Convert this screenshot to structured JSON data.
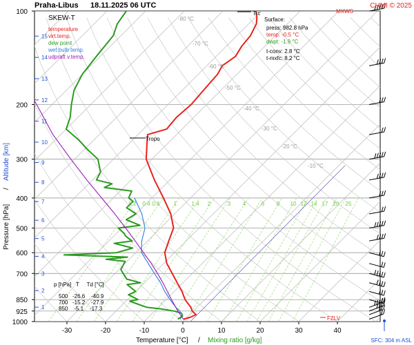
{
  "header": {
    "station": "Praha-Libus",
    "datetime": "18.11.2025 06 UTC",
    "credit": "CHMI © 2025",
    "mxws": "MXWS",
    "chart_name": "SKEW-T"
  },
  "legend": [
    {
      "label": "temperature",
      "color": "#e8201a"
    },
    {
      "label": "virt.temp.",
      "color": "#e8201a"
    },
    {
      "label": "dew point",
      "color": "#2a9a1e"
    },
    {
      "label": "wet bulb temp.",
      "color": "#2a7de1"
    },
    {
      "label": "udpraft v.temp.",
      "color": "#9a1ab8"
    }
  ],
  "surface_box": {
    "title": "Surface:",
    "press": "press: 982.8 hPa",
    "temp": "temp: -0.5 °C",
    "dwpt": "dwpt: -1.9 °C",
    "tconv": "t-conv: 2.8 °C",
    "tmxfc": "t-mxfc: 8.2 °C"
  },
  "levels_table": {
    "header": "p [hPa]   T     Td [°C]",
    "rows": [
      "500   -26.6    -40.9",
      "700   -15.2    -27.9",
      "850    -5.1    -17.3"
    ]
  },
  "labels": {
    "tropo": "Tropo",
    "trc": "Trc",
    "fzlv": "FZLV",
    "sfc": "SFC: 304 m ASL",
    "xlabel_temp": "Temperature [°C]",
    "xlabel_sep": "/",
    "xlabel_mix": "Mixing ratio [g/kg]",
    "ylabel_press": "Pressure [hPa]",
    "ylabel_sep": "/",
    "ylabel_alt": "Altitude [km]"
  },
  "chart_data": {
    "type": "line",
    "pressure_ticks": [
      100,
      200,
      300,
      400,
      500,
      600,
      700,
      850,
      925,
      1000
    ],
    "temperature_ticks": [
      -30,
      -20,
      -10,
      0,
      10,
      20,
      30,
      40
    ],
    "altitude_ticks": [
      1,
      2,
      3,
      4,
      5,
      6,
      7,
      8,
      9,
      10,
      11,
      12,
      13,
      14,
      15
    ],
    "isotherm_labels": [
      -80,
      -70,
      -60,
      -50,
      -40,
      -30,
      -20,
      -10
    ],
    "mixing_ratio_labels": [
      "0.2",
      "0.4",
      "0.6",
      "1",
      "1.4",
      "2",
      "3",
      "4",
      "6",
      "8",
      "10",
      "12",
      "14",
      "17",
      "20",
      "25"
    ],
    "series": [
      {
        "key": "temperature",
        "color": "#e8201a",
        "points": [
          [
            983,
            -0.5
          ],
          [
            970,
            0.8
          ],
          [
            950,
            1.6
          ],
          [
            925,
            -0.3
          ],
          [
            900,
            -1.6
          ],
          [
            850,
            -5.1
          ],
          [
            800,
            -8
          ],
          [
            750,
            -11.5
          ],
          [
            700,
            -15.2
          ],
          [
            650,
            -19.2
          ],
          [
            600,
            -22.5
          ],
          [
            550,
            -24.5
          ],
          [
            500,
            -26.6
          ],
          [
            450,
            -31
          ],
          [
            400,
            -37
          ],
          [
            350,
            -44
          ],
          [
            300,
            -51.5
          ],
          [
            270,
            -55
          ],
          [
            250,
            -57.5
          ],
          [
            240,
            -54
          ],
          [
            220,
            -54.5
          ],
          [
            200,
            -54
          ],
          [
            180,
            -54.5
          ],
          [
            160,
            -55
          ],
          [
            150,
            -56
          ],
          [
            140,
            -55
          ],
          [
            130,
            -56
          ],
          [
            120,
            -56.5
          ],
          [
            110,
            -58
          ],
          [
            105,
            -59.5
          ],
          [
            100,
            -61.5
          ]
        ]
      },
      {
        "key": "dew_point",
        "color": "#2a9a1e",
        "points": [
          [
            983,
            -1.9
          ],
          [
            960,
            -1.5
          ],
          [
            940,
            -2.5
          ],
          [
            925,
            -5
          ],
          [
            910,
            -9
          ],
          [
            900,
            -13
          ],
          [
            880,
            -16
          ],
          [
            860,
            -19
          ],
          [
            850,
            -17.3
          ],
          [
            820,
            -21
          ],
          [
            800,
            -20
          ],
          [
            780,
            -22
          ],
          [
            760,
            -24
          ],
          [
            750,
            -21
          ],
          [
            730,
            -25.5
          ],
          [
            700,
            -27.9
          ],
          [
            680,
            -29.5
          ],
          [
            660,
            -30
          ],
          [
            640,
            -30.5
          ],
          [
            630,
            -36
          ],
          [
            620,
            -31
          ],
          [
            610,
            -48
          ],
          [
            600,
            -35
          ],
          [
            580,
            -32
          ],
          [
            560,
            -38
          ],
          [
            550,
            -34
          ],
          [
            530,
            -37
          ],
          [
            520,
            -38
          ],
          [
            500,
            -40.9
          ],
          [
            490,
            -36
          ],
          [
            470,
            -41
          ],
          [
            450,
            -40
          ],
          [
            430,
            -44
          ],
          [
            410,
            -44
          ],
          [
            400,
            -46
          ],
          [
            380,
            -47
          ],
          [
            370,
            -55
          ],
          [
            360,
            -54
          ],
          [
            350,
            -59
          ],
          [
            330,
            -60
          ],
          [
            300,
            -64
          ],
          [
            280,
            -69
          ],
          [
            260,
            -74
          ],
          [
            240,
            -80
          ],
          [
            220,
            -82
          ],
          [
            200,
            -85
          ],
          [
            180,
            -88
          ],
          [
            160,
            -90
          ],
          [
            140,
            -91
          ],
          [
            120,
            -92
          ],
          [
            110,
            -94
          ],
          [
            100,
            -95
          ]
        ]
      },
      {
        "key": "wet_bulb",
        "color": "#2a7de1",
        "points": [
          [
            983,
            -1.2
          ],
          [
            950,
            -2
          ],
          [
            925,
            -3.5
          ],
          [
            900,
            -5.5
          ],
          [
            850,
            -9
          ],
          [
            800,
            -12.5
          ],
          [
            750,
            -15.8
          ],
          [
            700,
            -19.8
          ],
          [
            650,
            -24
          ],
          [
            600,
            -28.5
          ],
          [
            550,
            -31.5
          ],
          [
            500,
            -34
          ],
          [
            450,
            -38.5
          ],
          [
            400,
            -44.5
          ]
        ]
      },
      {
        "key": "updraft",
        "color": "#9a1ab8",
        "points": [
          [
            983,
            -0.5
          ],
          [
            925,
            -4
          ],
          [
            850,
            -8.6
          ],
          [
            800,
            -11.8
          ],
          [
            750,
            -15.2
          ],
          [
            700,
            -19
          ],
          [
            650,
            -23.2
          ],
          [
            600,
            -28
          ],
          [
            550,
            -33.2
          ],
          [
            500,
            -39
          ],
          [
            450,
            -45.5
          ],
          [
            400,
            -53
          ],
          [
            350,
            -61.5
          ],
          [
            300,
            -71
          ],
          [
            250,
            -82
          ],
          [
            200,
            -94
          ],
          [
            170,
            -103
          ]
        ]
      }
    ],
    "winds_hpa": [
      983,
      950,
      925,
      900,
      850,
      800,
      750,
      700,
      650,
      600,
      550,
      500,
      450,
      400,
      350,
      300,
      250,
      200,
      150,
      100
    ],
    "grid": true
  }
}
